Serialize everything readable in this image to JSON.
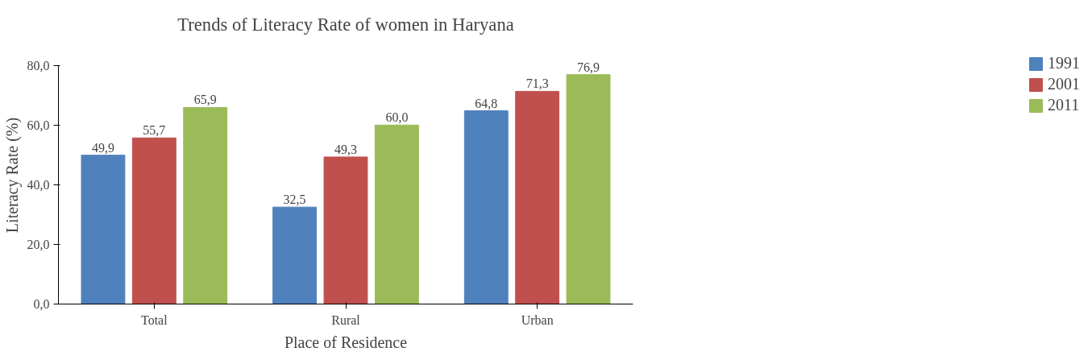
{
  "chart_data": {
    "type": "bar",
    "title": "Trends of Literacy Rate of women in Haryana",
    "xlabel": "Place of Residence",
    "ylabel": "Literacy Rate (%)",
    "categories": [
      "Total",
      "Rural",
      "Urban"
    ],
    "series": [
      {
        "name": "1991",
        "color": "#4f81bd",
        "values": [
          49.9,
          32.5,
          64.8
        ],
        "value_labels": [
          "49,9",
          "32,5",
          "64,8"
        ]
      },
      {
        "name": "2001",
        "color": "#c0504d",
        "values": [
          55.7,
          49.3,
          71.3
        ],
        "value_labels": [
          "55,7",
          "49,3",
          "71,3"
        ]
      },
      {
        "name": "2011",
        "color": "#9bbb59",
        "values": [
          65.9,
          60.0,
          76.9
        ],
        "value_labels": [
          "65,9",
          "60,0",
          "76,9"
        ]
      }
    ],
    "ylim": [
      0,
      80
    ],
    "yticks": [
      {
        "value": 0,
        "label": "0,0"
      },
      {
        "value": 20,
        "label": "20,0"
      },
      {
        "value": 40,
        "label": "40,0"
      },
      {
        "value": 60,
        "label": "60,0"
      },
      {
        "value": 80,
        "label": "80,0"
      }
    ],
    "grid": false,
    "legend": "right"
  }
}
